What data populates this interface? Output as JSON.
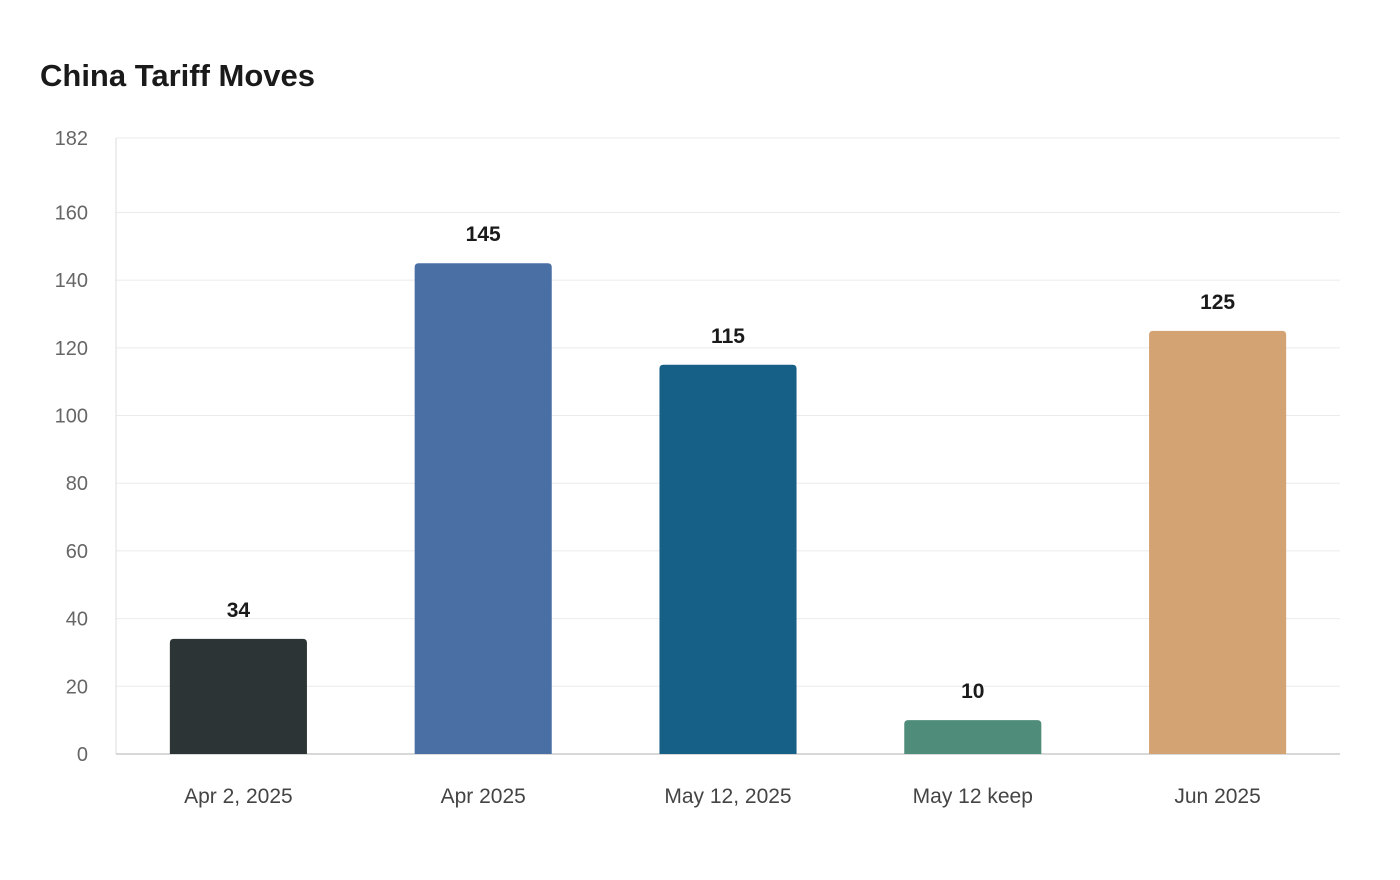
{
  "chart_data": {
    "type": "bar",
    "title": "China Tariff Moves",
    "xlabel": "",
    "ylabel": "",
    "categories": [
      "Apr 2, 2025",
      "Apr 2025",
      "May 12, 2025",
      "May 12 keep",
      "Jun 2025"
    ],
    "values": [
      34,
      145,
      115,
      10,
      125
    ],
    "value_labels": [
      "34",
      "145",
      "115",
      "10",
      "125"
    ],
    "colors": [
      "#2d3436",
      "#4a6fa5",
      "#166088",
      "#4f8d7a",
      "#d4a373"
    ],
    "ylim": [
      0,
      182
    ],
    "yticks": [
      0,
      20,
      40,
      60,
      80,
      100,
      120,
      140,
      160,
      182
    ],
    "grid": true,
    "legend": "none"
  }
}
